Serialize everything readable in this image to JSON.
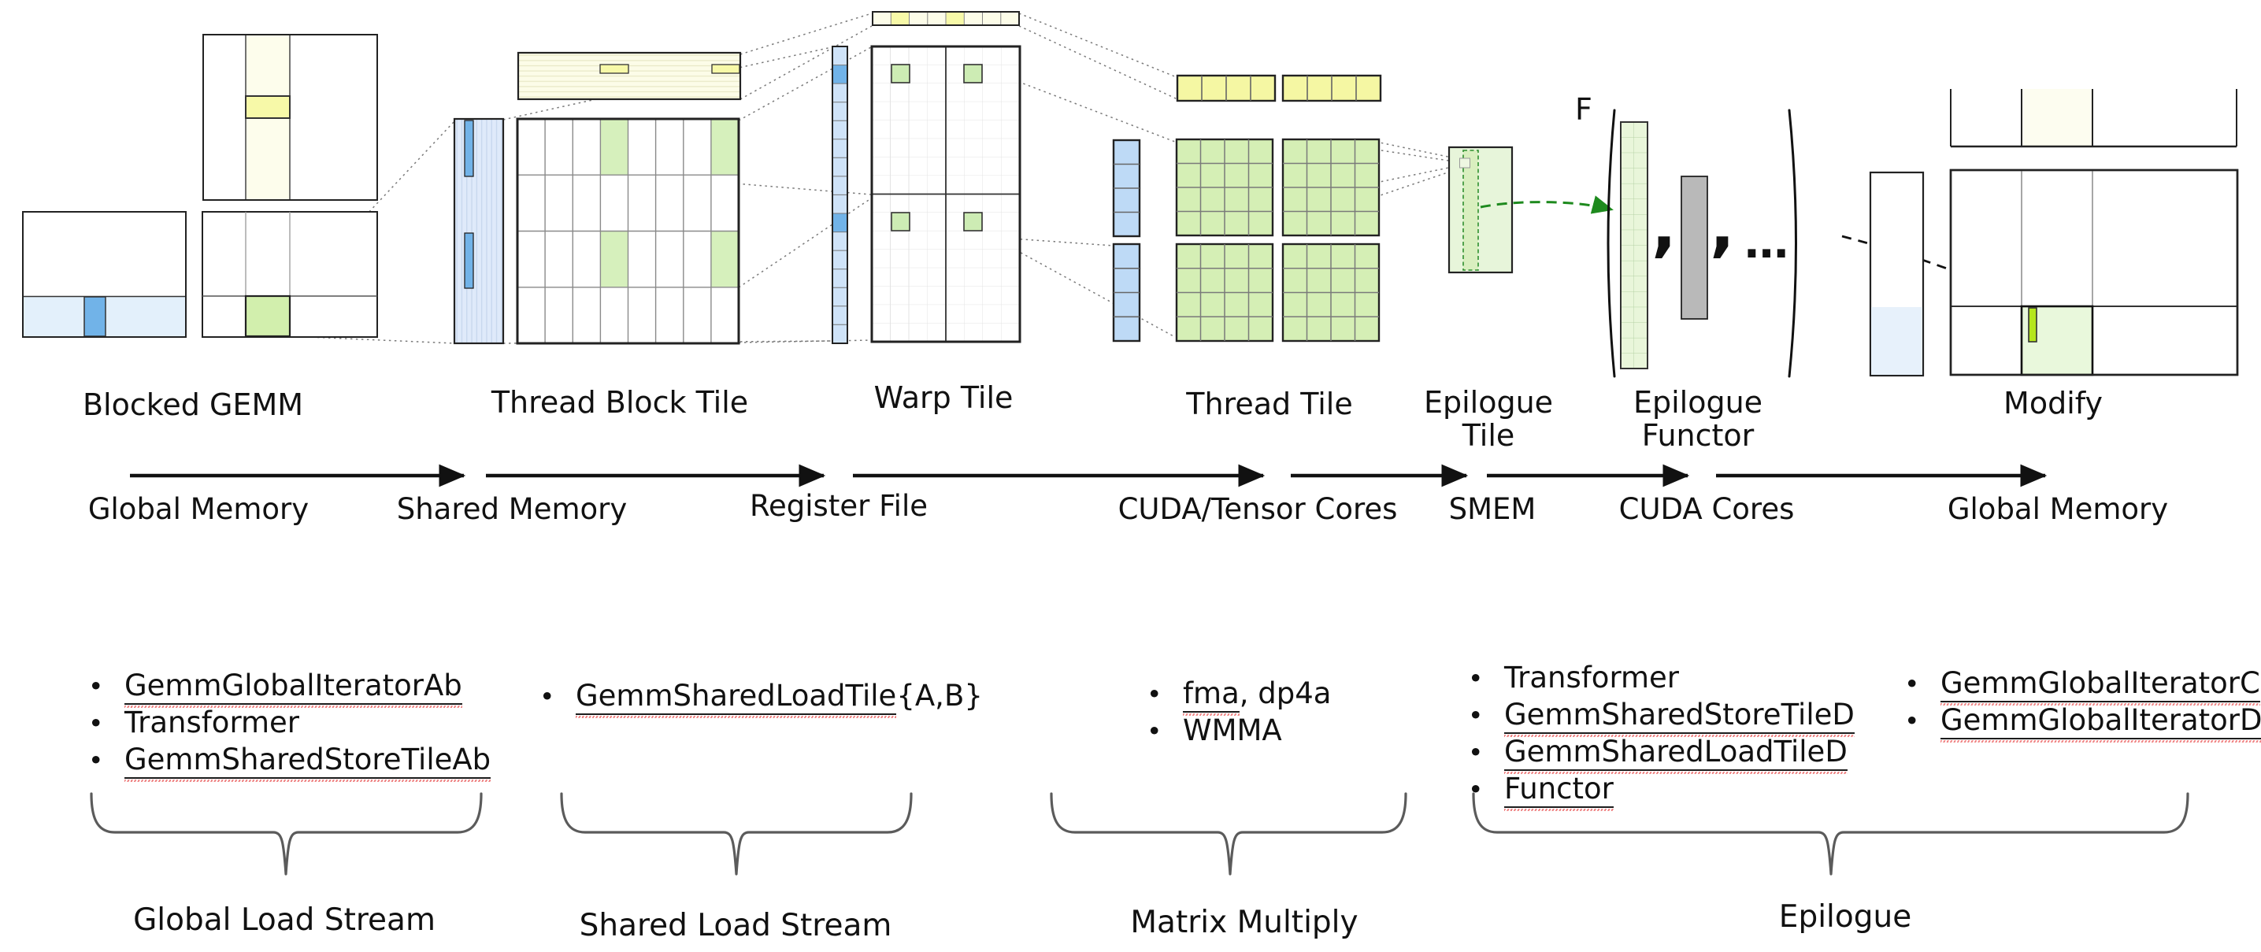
{
  "stage_labels": {
    "blocked_gemm": "Blocked GEMM",
    "thread_block_tile": "Thread Block Tile",
    "warp_tile": "Warp Tile",
    "thread_tile": "Thread Tile",
    "epilogue_tile": [
      "Epilogue",
      "Tile"
    ],
    "epilogue_functor": [
      "Epilogue",
      "Functor"
    ],
    "modify": "Modify"
  },
  "functor_expression": {
    "symbol": "F",
    "comma": ",",
    "ellipsis": "⋯"
  },
  "memory_flow": {
    "labels": [
      "Global Memory",
      "Shared Memory",
      "Register File",
      "CUDA/Tensor Cores",
      "SMEM",
      "CUDA Cores",
      "Global Memory"
    ]
  },
  "component_lists": [
    {
      "name": "global-load-stream",
      "brace_label": "Global Load Stream",
      "items": [
        [
          {
            "text": "GemmGlobalIteratorAb",
            "underline": true
          }
        ],
        [
          {
            "text": "Transformer",
            "underline": false
          }
        ],
        [
          {
            "text": "GemmSharedStoreTileAb",
            "underline": true
          }
        ]
      ]
    },
    {
      "name": "shared-load-stream",
      "brace_label": "Shared Load Stream",
      "items": [
        [
          {
            "text": "GemmSharedLoadTile",
            "underline": true
          },
          {
            "text": "{A,B}",
            "underline": false
          }
        ]
      ]
    },
    {
      "name": "matrix-multiply",
      "brace_label": "Matrix Multiply",
      "items": [
        [
          {
            "text": "fma",
            "underline": true
          },
          {
            "text": ", dp4a",
            "underline": false
          }
        ],
        [
          {
            "text": "WMMA",
            "underline": false
          }
        ]
      ]
    },
    {
      "name": "epilogue",
      "brace_label": "Epilogue",
      "items": [
        [
          {
            "text": "Transformer",
            "underline": false
          }
        ],
        [
          {
            "text": "GemmSharedStoreTileD",
            "underline": true
          }
        ],
        [
          {
            "text": "GemmSharedLoadTileD",
            "underline": true
          }
        ],
        [
          {
            "text": "Functor",
            "underline": true
          }
        ]
      ]
    },
    {
      "name": "global-store",
      "brace_label": null,
      "items": [
        [
          {
            "text": "GemmGlobalIteratorC",
            "underline": true
          }
        ],
        [
          {
            "text": "GemmGlobalIteratorD",
            "underline": true
          }
        ]
      ]
    }
  ],
  "colors": {
    "highlight_yellow": "#f7f9a8",
    "pale_yellow": "#fcfce8",
    "light_green": "#d5efb5",
    "pale_green": "#e7f5da",
    "medium_blue": "#71b3e8",
    "light_blue": "#dfeafa",
    "pale_blue": "#e3f0fb",
    "thread_blue": "#bedaf6",
    "gray_bar": "#b9b9b9",
    "lime_bar": "#b5e61d",
    "green_arrow": "#1e8a1e",
    "brace_gray": "#5b5b5b",
    "underline_red": "#ef8585"
  }
}
